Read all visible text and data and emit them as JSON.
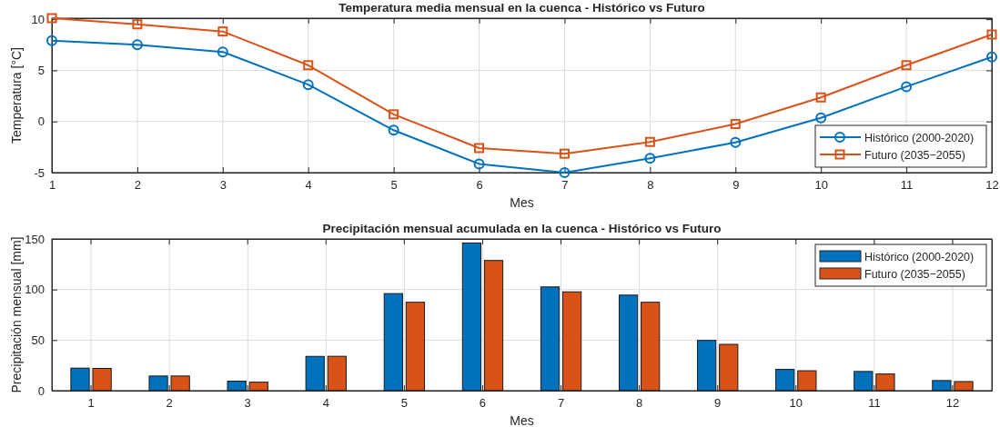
{
  "chart_data": [
    {
      "type": "line",
      "title": "Temperatura media mensual en la cuenca - Histórico vs Futuro",
      "xlabel": "Mes",
      "ylabel": "Temperatura [°C]",
      "x": [
        1,
        2,
        3,
        4,
        5,
        6,
        7,
        8,
        9,
        10,
        11,
        12
      ],
      "xlim": [
        1,
        12
      ],
      "xticks": [
        1,
        2,
        3,
        4,
        5,
        6,
        7,
        8,
        9,
        10,
        11,
        12
      ],
      "ylim": [
        -5,
        10.1
      ],
      "yticks": [
        -5,
        0,
        5,
        10
      ],
      "grid": true,
      "legend": "bottom right",
      "line_style": "solid",
      "series": [
        {
          "name": "Histórico (2000-2020)",
          "color": "#0072bd",
          "marker": "circle",
          "values": [
            7.9,
            7.5,
            6.8,
            3.6,
            -0.85,
            -4.15,
            -5.0,
            -3.6,
            -2.05,
            0.35,
            3.4,
            6.3
          ]
        },
        {
          "name": "Futuro (2035−2055)",
          "color": "#d95319",
          "marker": "square",
          "values": [
            10.1,
            9.5,
            8.8,
            5.5,
            0.7,
            -2.6,
            -3.15,
            -2.0,
            -0.25,
            2.35,
            5.5,
            8.5
          ]
        }
      ]
    },
    {
      "type": "bar",
      "title": "Precipitación mensual acumulada en la cuenca - Histórico vs Futuro",
      "xlabel": "Mes",
      "ylabel": "Precipitación mensual [mm]",
      "categories": [
        "1",
        "2",
        "3",
        "4",
        "5",
        "6",
        "7",
        "8",
        "9",
        "10",
        "11",
        "12"
      ],
      "ylim": [
        0,
        150
      ],
      "yticks": [
        0,
        50,
        100,
        150
      ],
      "grid": true,
      "legend": "top right",
      "series": [
        {
          "name": "Histórico (2000-2020)",
          "color": "#0072bd",
          "values": [
            22.3,
            14.5,
            9.4,
            33.9,
            96,
            146,
            102.6,
            94.5,
            49.7,
            21,
            19,
            10
          ]
        },
        {
          "name": "Futuro (2035−2055)",
          "color": "#d95319",
          "values": [
            22,
            14.5,
            8.4,
            34,
            87.4,
            128.7,
            97.7,
            87.4,
            45.8,
            19.7,
            16.5,
            9
          ]
        }
      ]
    }
  ]
}
